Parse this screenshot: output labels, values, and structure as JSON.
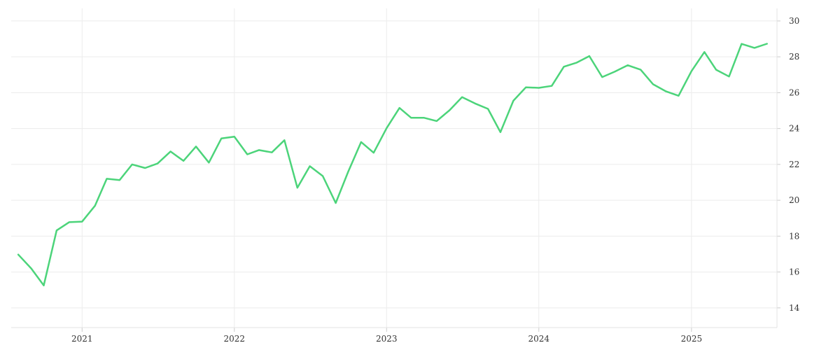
{
  "chart_data": {
    "type": "line",
    "title": "",
    "xlabel": "",
    "ylabel": "",
    "x_range": [
      "2020-07-15",
      "2025-07-25"
    ],
    "ylim": [
      12.9,
      30.7
    ],
    "y_ticks": [
      14,
      16,
      18,
      20,
      22,
      24,
      26,
      28,
      30
    ],
    "x_ticks": [
      {
        "date": "2021-01-01",
        "label": "2021"
      },
      {
        "date": "2022-01-01",
        "label": "2022"
      },
      {
        "date": "2023-01-01",
        "label": "2023"
      },
      {
        "date": "2024-01-01",
        "label": "2024"
      },
      {
        "date": "2025-01-01",
        "label": "2025"
      }
    ],
    "y_axis_position": "right",
    "grid": true,
    "series": [
      {
        "color": "#4cd47a",
        "points": [
          [
            "2020-08-01",
            16.97
          ],
          [
            "2020-09-01",
            16.2
          ],
          [
            "2020-10-01",
            15.25
          ],
          [
            "2020-11-01",
            18.32
          ],
          [
            "2020-12-01",
            18.78
          ],
          [
            "2021-01-01",
            18.81
          ],
          [
            "2021-02-01",
            19.7
          ],
          [
            "2021-03-01",
            21.2
          ],
          [
            "2021-04-01",
            21.13
          ],
          [
            "2021-05-01",
            22.0
          ],
          [
            "2021-06-01",
            21.8
          ],
          [
            "2021-07-01",
            22.05
          ],
          [
            "2021-08-01",
            22.72
          ],
          [
            "2021-09-01",
            22.2
          ],
          [
            "2021-10-01",
            23.0
          ],
          [
            "2021-11-01",
            22.1
          ],
          [
            "2021-12-01",
            23.45
          ],
          [
            "2022-01-01",
            23.55
          ],
          [
            "2022-02-01",
            22.56
          ],
          [
            "2022-03-01",
            22.8
          ],
          [
            "2022-04-01",
            22.67
          ],
          [
            "2022-05-01",
            23.35
          ],
          [
            "2022-06-01",
            20.7
          ],
          [
            "2022-07-01",
            21.9
          ],
          [
            "2022-08-01",
            21.35
          ],
          [
            "2022-09-01",
            19.85
          ],
          [
            "2022-10-01",
            21.6
          ],
          [
            "2022-11-01",
            23.25
          ],
          [
            "2022-12-01",
            22.65
          ],
          [
            "2023-01-01",
            24.02
          ],
          [
            "2023-02-01",
            25.15
          ],
          [
            "2023-03-01",
            24.6
          ],
          [
            "2023-04-01",
            24.6
          ],
          [
            "2023-05-01",
            24.42
          ],
          [
            "2023-06-01",
            25.02
          ],
          [
            "2023-07-01",
            25.75
          ],
          [
            "2023-08-01",
            25.4
          ],
          [
            "2023-09-01",
            25.1
          ],
          [
            "2023-10-01",
            23.8
          ],
          [
            "2023-11-01",
            25.55
          ],
          [
            "2023-12-01",
            26.3
          ],
          [
            "2024-01-01",
            26.27
          ],
          [
            "2024-02-01",
            26.38
          ],
          [
            "2024-03-01",
            27.45
          ],
          [
            "2024-04-01",
            27.68
          ],
          [
            "2024-05-01",
            28.04
          ],
          [
            "2024-06-01",
            26.87
          ],
          [
            "2024-07-01",
            27.17
          ],
          [
            "2024-08-01",
            27.53
          ],
          [
            "2024-09-01",
            27.28
          ],
          [
            "2024-10-01",
            26.47
          ],
          [
            "2024-11-01",
            26.07
          ],
          [
            "2024-12-01",
            25.83
          ],
          [
            "2025-01-01",
            27.2
          ],
          [
            "2025-02-01",
            28.27
          ],
          [
            "2025-03-01",
            27.28
          ],
          [
            "2025-04-01",
            26.9
          ],
          [
            "2025-05-01",
            28.72
          ],
          [
            "2025-06-01",
            28.5
          ],
          [
            "2025-07-01",
            28.73
          ]
        ]
      }
    ]
  }
}
